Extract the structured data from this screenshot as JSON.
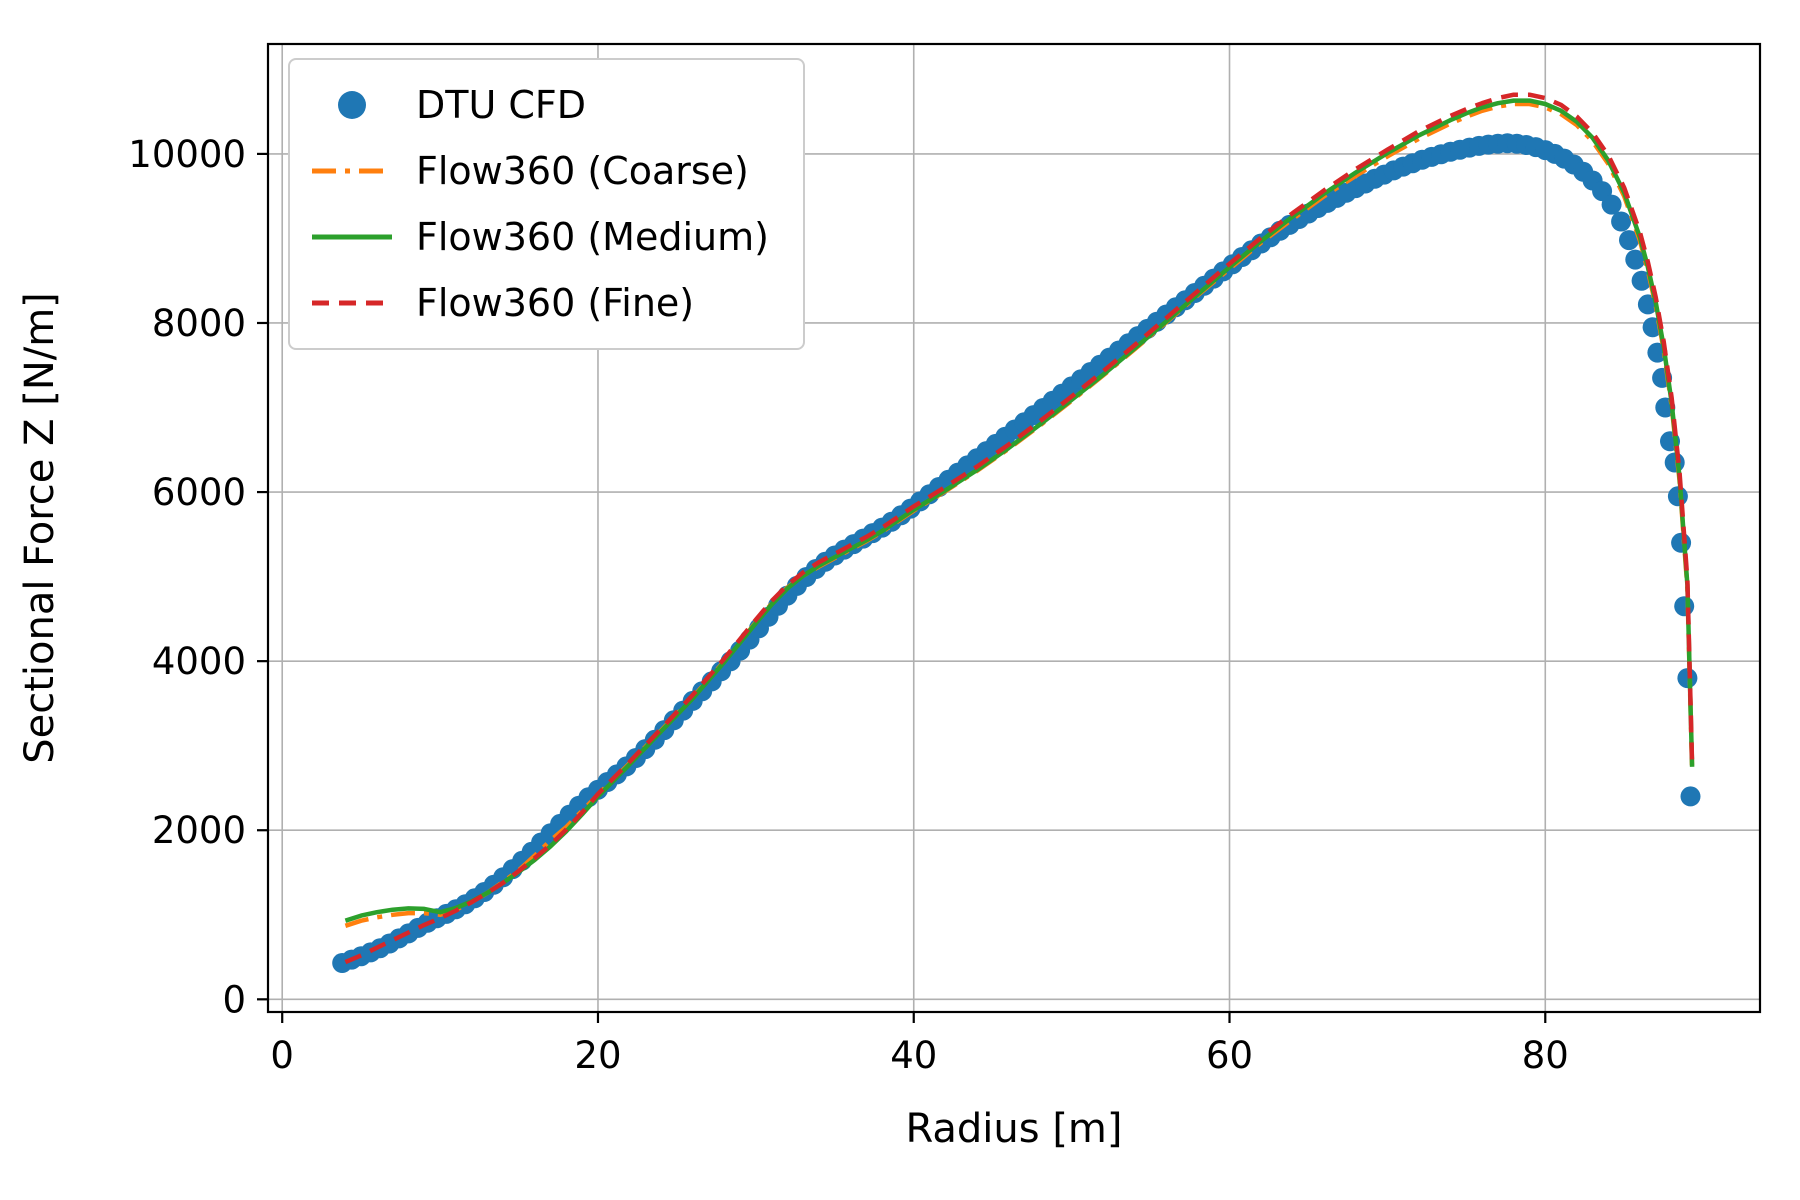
{
  "chart_data": {
    "type": "line+scatter",
    "title": "",
    "xlabel": "Radius [m]",
    "ylabel": "Sectional Force Z [N/m]",
    "xlim": [
      -0.9,
      93.6
    ],
    "ylim": [
      -150,
      11300
    ],
    "xticks": [
      0,
      20,
      40,
      60,
      80
    ],
    "yticks": [
      0,
      2000,
      4000,
      6000,
      8000,
      10000
    ],
    "grid": true,
    "legend_position": "upper-left",
    "colors": {
      "grid": "#b0b0b0",
      "spine": "#000000",
      "background": "#ffffff"
    },
    "series": [
      {
        "id": "dtu-cfd",
        "name": "DTU CFD",
        "style": "scatter",
        "color": "#1f77b4",
        "marker_radius": 10,
        "x": [
          3.8,
          4.4,
          5.0,
          5.6,
          6.2,
          6.8,
          7.4,
          8.0,
          8.6,
          9.2,
          9.8,
          10.4,
          11.0,
          11.6,
          12.2,
          12.8,
          13.4,
          14.0,
          14.6,
          15.2,
          15.8,
          16.4,
          17.0,
          17.6,
          18.2,
          18.8,
          19.4,
          20.0,
          20.6,
          21.2,
          21.8,
          22.4,
          23.0,
          23.6,
          24.2,
          24.8,
          25.4,
          26.0,
          26.6,
          27.2,
          27.8,
          28.4,
          29.0,
          29.6,
          30.2,
          30.8,
          31.4,
          32.0,
          32.6,
          33.2,
          33.8,
          34.4,
          35.0,
          35.6,
          36.2,
          36.8,
          37.4,
          38.0,
          38.6,
          39.2,
          39.8,
          40.4,
          41.0,
          41.6,
          42.2,
          42.8,
          43.4,
          44.0,
          44.6,
          45.2,
          45.8,
          46.4,
          47.0,
          47.6,
          48.2,
          48.8,
          49.4,
          50.0,
          50.6,
          51.2,
          51.8,
          52.4,
          53.0,
          53.6,
          54.2,
          54.8,
          55.4,
          56.0,
          56.6,
          57.2,
          57.8,
          58.4,
          59.0,
          59.6,
          60.2,
          60.8,
          61.4,
          62.0,
          62.6,
          63.2,
          63.8,
          64.4,
          65.0,
          65.6,
          66.2,
          66.8,
          67.4,
          68.0,
          68.6,
          69.2,
          69.8,
          70.4,
          71.0,
          71.6,
          72.2,
          72.8,
          73.4,
          74.0,
          74.6,
          75.2,
          75.8,
          76.4,
          77.0,
          77.6,
          78.2,
          78.8,
          79.4,
          80.0,
          80.6,
          81.2,
          81.8,
          82.4,
          83.0,
          83.6,
          84.2,
          84.8,
          85.3,
          85.7,
          86.1,
          86.5,
          86.8,
          87.1,
          87.4,
          87.6,
          87.9,
          88.2,
          88.4,
          88.6,
          88.8,
          89.0,
          89.2
        ],
        "y": [
          430,
          470,
          510,
          555,
          605,
          660,
          720,
          780,
          845,
          905,
          960,
          1010,
          1065,
          1125,
          1195,
          1270,
          1355,
          1445,
          1540,
          1640,
          1745,
          1855,
          1965,
          2075,
          2185,
          2290,
          2390,
          2480,
          2570,
          2660,
          2755,
          2855,
          2960,
          3070,
          3185,
          3300,
          3415,
          3530,
          3645,
          3760,
          3880,
          4000,
          4125,
          4255,
          4390,
          4525,
          4655,
          4775,
          4890,
          4995,
          5090,
          5175,
          5250,
          5320,
          5385,
          5450,
          5515,
          5580,
          5650,
          5725,
          5805,
          5890,
          5975,
          6060,
          6145,
          6230,
          6315,
          6400,
          6485,
          6570,
          6655,
          6740,
          6825,
          6910,
          6995,
          7080,
          7165,
          7250,
          7335,
          7420,
          7505,
          7590,
          7675,
          7760,
          7845,
          7930,
          8015,
          8100,
          8185,
          8270,
          8355,
          8440,
          8525,
          8610,
          8695,
          8780,
          8860,
          8940,
          9015,
          9090,
          9160,
          9230,
          9295,
          9360,
          9420,
          9480,
          9540,
          9595,
          9650,
          9705,
          9755,
          9805,
          9850,
          9890,
          9930,
          9965,
          9995,
          10025,
          10050,
          10075,
          10095,
          10110,
          10120,
          10125,
          10120,
          10105,
          10080,
          10045,
          10000,
          9945,
          9875,
          9790,
          9685,
          9560,
          9400,
          9200,
          8980,
          8750,
          8500,
          8220,
          7950,
          7650,
          7350,
          7000,
          6600,
          6350,
          5950,
          5400,
          4650,
          3800,
          2400
        ]
      },
      {
        "id": "flow360-coarse",
        "name": "Flow360 (Coarse)",
        "style": "dashdot",
        "color": "#ff7f0e",
        "x": [
          4,
          5,
          6,
          7,
          8,
          9,
          10,
          11,
          12,
          13,
          14,
          15,
          16,
          17,
          18,
          19,
          20,
          22,
          24,
          26,
          28,
          30,
          31,
          32,
          33,
          34,
          35,
          36,
          37,
          38,
          40,
          42,
          44,
          46,
          48,
          50,
          52,
          54,
          56,
          58,
          60,
          62,
          64,
          66,
          68,
          70,
          72,
          74,
          75,
          76,
          77,
          78,
          79,
          80,
          81,
          82,
          83,
          84,
          85,
          86,
          86.5,
          87,
          87.5,
          88,
          88.5,
          89,
          89.3
        ],
        "y": [
          870,
          930,
          970,
          1000,
          1020,
          1020,
          1000,
          1060,
          1150,
          1260,
          1390,
          1530,
          1700,
          1880,
          2040,
          2230,
          2420,
          2790,
          3180,
          3570,
          4000,
          4460,
          4680,
          4870,
          5010,
          5120,
          5220,
          5320,
          5420,
          5530,
          5780,
          6010,
          6250,
          6510,
          6790,
          7080,
          7380,
          7690,
          8010,
          8330,
          8640,
          8950,
          9230,
          9500,
          9740,
          9970,
          10180,
          10360,
          10440,
          10510,
          10560,
          10590,
          10590,
          10550,
          10470,
          10340,
          10150,
          9880,
          9500,
          8970,
          8620,
          8200,
          7680,
          7020,
          6140,
          4860,
          2720
        ]
      },
      {
        "id": "flow360-medium",
        "name": "Flow360 (Medium)",
        "style": "solid",
        "color": "#2ca02c",
        "x": [
          4,
          5,
          6,
          7,
          8,
          9,
          10,
          11,
          12,
          13,
          14,
          15,
          16,
          17,
          18,
          19,
          20,
          22,
          24,
          26,
          28,
          30,
          31,
          32,
          33,
          34,
          35,
          36,
          37,
          38,
          40,
          42,
          44,
          46,
          48,
          50,
          52,
          54,
          56,
          58,
          60,
          62,
          64,
          66,
          68,
          70,
          72,
          74,
          75,
          76,
          77,
          78,
          79,
          80,
          81,
          82,
          83,
          84,
          85,
          86,
          86.5,
          87,
          87.5,
          88,
          88.5,
          89,
          89.3
        ],
        "y": [
          930,
          990,
          1030,
          1060,
          1075,
          1070,
          1030,
          1080,
          1160,
          1260,
          1380,
          1510,
          1650,
          1810,
          1990,
          2190,
          2400,
          2780,
          3170,
          3560,
          3990,
          4450,
          4670,
          4860,
          5010,
          5130,
          5230,
          5330,
          5430,
          5540,
          5790,
          6020,
          6260,
          6520,
          6800,
          7090,
          7390,
          7700,
          8020,
          8340,
          8660,
          8970,
          9260,
          9530,
          9780,
          10010,
          10220,
          10400,
          10480,
          10550,
          10600,
          10630,
          10630,
          10590,
          10510,
          10380,
          10190,
          9920,
          9540,
          9010,
          8660,
          8240,
          7720,
          7060,
          6180,
          4900,
          2750
        ]
      },
      {
        "id": "flow360-fine",
        "name": "Flow360 (Fine)",
        "style": "dashed",
        "color": "#d62728",
        "x": [
          4,
          5,
          6,
          7,
          8,
          9,
          10,
          11,
          12,
          13,
          14,
          15,
          16,
          17,
          18,
          19,
          20,
          22,
          24,
          26,
          28,
          30,
          31,
          32,
          33,
          34,
          35,
          36,
          37,
          38,
          40,
          42,
          44,
          46,
          48,
          50,
          52,
          54,
          56,
          58,
          60,
          62,
          64,
          66,
          68,
          70,
          72,
          74,
          75,
          76,
          77,
          78,
          79,
          80,
          81,
          82,
          83,
          84,
          85,
          86,
          86.5,
          87,
          87.5,
          88,
          88.5,
          89,
          89.3
        ],
        "y": [
          440,
          520,
          610,
          700,
          790,
          880,
          960,
          1050,
          1150,
          1260,
          1380,
          1520,
          1670,
          1830,
          2010,
          2210,
          2430,
          2810,
          3200,
          3600,
          4030,
          4490,
          4710,
          4900,
          5050,
          5170,
          5270,
          5370,
          5470,
          5580,
          5830,
          6060,
          6300,
          6560,
          6840,
          7130,
          7430,
          7740,
          8060,
          8380,
          8700,
          9010,
          9300,
          9570,
          9820,
          10050,
          10270,
          10450,
          10530,
          10600,
          10660,
          10700,
          10700,
          10660,
          10580,
          10440,
          10250,
          9980,
          9600,
          9070,
          8720,
          8300,
          7780,
          7120,
          6240,
          4960,
          2780
        ]
      }
    ]
  }
}
